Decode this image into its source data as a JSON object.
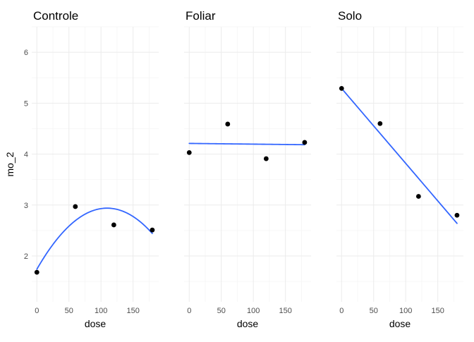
{
  "chart_data": {
    "type": "scatter",
    "layout": "facets",
    "ylabel": "mo_2",
    "ylim": [
      1.1,
      6.5
    ],
    "yticks": [
      2,
      3,
      4,
      5,
      6
    ],
    "yticks_minor": [
      1.5,
      2.5,
      3.5,
      4.5,
      5.5,
      6.5
    ],
    "xlim": [
      -8,
      190
    ],
    "xticks": [
      0,
      50,
      100,
      150
    ],
    "xticks_minor": [
      25,
      75,
      125,
      175
    ],
    "line_color": "#3366ff",
    "point_color": "#000000",
    "panels": [
      {
        "title": "Controle",
        "xlabel": "dose",
        "points": [
          {
            "x": 0,
            "y": 1.68
          },
          {
            "x": 60,
            "y": 2.97
          },
          {
            "x": 120,
            "y": 2.61
          },
          {
            "x": 180,
            "y": 2.51
          }
        ],
        "fit": {
          "model": "quadratic",
          "coef": [
            1.74,
            0.0219,
            -0.0001
          ],
          "x_range": [
            0,
            180
          ]
        }
      },
      {
        "title": "Foliar",
        "xlabel": "dose",
        "points": [
          {
            "x": 0,
            "y": 4.03
          },
          {
            "x": 60,
            "y": 4.59
          },
          {
            "x": 120,
            "y": 3.91
          },
          {
            "x": 180,
            "y": 4.23
          }
        ],
        "fit": {
          "model": "linear",
          "coef": [
            4.21,
            -0.00014
          ],
          "x_range": [
            0,
            180
          ]
        }
      },
      {
        "title": "Solo",
        "xlabel": "dose",
        "points": [
          {
            "x": 0,
            "y": 5.29
          },
          {
            "x": 60,
            "y": 4.6
          },
          {
            "x": 120,
            "y": 3.17
          },
          {
            "x": 180,
            "y": 2.8
          }
        ],
        "fit": {
          "model": "linear",
          "coef": [
            5.29,
            -0.01472
          ],
          "x_range": [
            0,
            180
          ]
        }
      }
    ]
  }
}
